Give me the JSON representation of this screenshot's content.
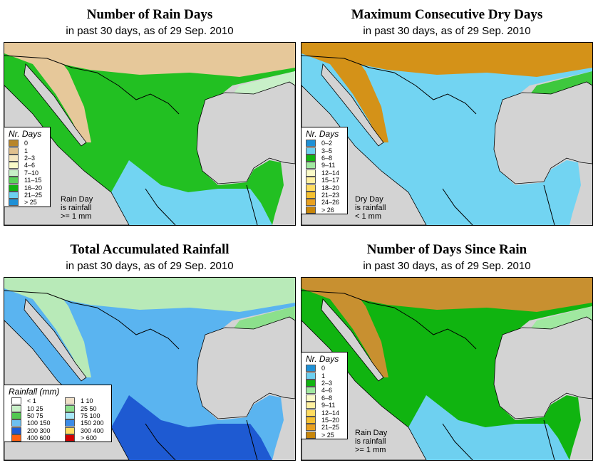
{
  "panels": [
    {
      "id": "rain-days",
      "title": "Number of Rain Days",
      "subtitle": "in past 30 days, as of  29 Sep. 2010",
      "legend_title": "Nr. Days",
      "legend": [
        {
          "label": "0",
          "color": "#b8862b"
        },
        {
          "label": "1",
          "color": "#e0c08e"
        },
        {
          "label": "2–3",
          "color": "#f5e6c0"
        },
        {
          "label": "4–6",
          "color": "#fafac8"
        },
        {
          "label": "7–10",
          "color": "#c8f0c8"
        },
        {
          "label": "11–15",
          "color": "#5ad25a"
        },
        {
          "label": "16–20",
          "color": "#10b410"
        },
        {
          "label": "21–25",
          "color": "#6ed0f0"
        },
        {
          "label": "> 25",
          "color": "#1e90d6"
        }
      ],
      "note": [
        "Rain Day",
        "is rainfall",
        ">= 1 mm"
      ],
      "palette": {
        "north": "#e6c89a",
        "land": "#22c022",
        "south": "#72d4f2",
        "east": "#c8f0c8"
      }
    },
    {
      "id": "max-dry-days",
      "title": "Maximum Consecutive Dry Days",
      "subtitle": "in past 30 days, as of  29 Sep. 2010",
      "legend_title": "Nr. Days",
      "legend": [
        {
          "label": "0–2",
          "color": "#1e90d6"
        },
        {
          "label": "3–5",
          "color": "#6ed0f0"
        },
        {
          "label": "6–8",
          "color": "#10b410"
        },
        {
          "label": "9–11",
          "color": "#a0e8a0"
        },
        {
          "label": "12–14",
          "color": "#fafac8"
        },
        {
          "label": "15–17",
          "color": "#fff0a0"
        },
        {
          "label": "18–20",
          "color": "#ffdc60"
        },
        {
          "label": "21–23",
          "color": "#f5c030"
        },
        {
          "label": "24–26",
          "color": "#e8a020"
        },
        {
          "label": "> 26",
          "color": "#c8860a"
        }
      ],
      "note": [
        "Dry Day",
        "is rainfall",
        "< 1 mm"
      ],
      "palette": {
        "north": "#d49218",
        "land": "#72d4f2",
        "south": "#72d4f2",
        "east": "#3ec83e"
      }
    },
    {
      "id": "total-rainfall",
      "title": "Total Accumulated Rainfall",
      "subtitle": "in past 30 days, as of  29 Sep. 2010",
      "legend_title": "Rainfall (mm)",
      "legend": [
        {
          "label": "< 1",
          "color": "#ffffff"
        },
        {
          "label": "1    10",
          "color": "#f0e0c8"
        },
        {
          "label": "10    25",
          "color": "#c8f0c8"
        },
        {
          "label": "25    50",
          "color": "#8ce08c"
        },
        {
          "label": "50    75",
          "color": "#50c850"
        },
        {
          "label": "75    100",
          "color": "#a8e8f8"
        },
        {
          "label": "100   150",
          "color": "#6ec0f0"
        },
        {
          "label": "150   200",
          "color": "#3c8ce8"
        },
        {
          "label": "200   300",
          "color": "#1e5ad2"
        },
        {
          "label": "300   400",
          "color": "#ffdc60"
        },
        {
          "label": "400   600",
          "color": "#ff6010"
        },
        {
          "label": "> 600",
          "color": "#d20000"
        }
      ],
      "note": [],
      "palette": {
        "north": "#b8eab8",
        "land": "#5ab4f0",
        "south": "#1e5ad2",
        "east": "#8ce08c"
      }
    },
    {
      "id": "days-since-rain",
      "title": "Number of Days Since Rain",
      "subtitle": "in past 30 days, as of  29 Sep. 2010",
      "legend_title": "Nr. Days",
      "legend": [
        {
          "label": "0",
          "color": "#1e90d6"
        },
        {
          "label": "1",
          "color": "#6ed0f0"
        },
        {
          "label": "2–3",
          "color": "#10b410"
        },
        {
          "label": "4–6",
          "color": "#a0e8a0"
        },
        {
          "label": "6–8",
          "color": "#fafac8"
        },
        {
          "label": "9–11",
          "color": "#fff0a0"
        },
        {
          "label": "12–14",
          "color": "#ffdc60"
        },
        {
          "label": "15–20",
          "color": "#f5c030"
        },
        {
          "label": "21–25",
          "color": "#e8a020"
        },
        {
          "label": "> 25",
          "color": "#c8860a"
        }
      ],
      "note": [
        "Rain Day",
        "is rainfall",
        ">= 1 mm"
      ],
      "palette": {
        "north": "#c89030",
        "land": "#10b410",
        "south": "#6ed0f0",
        "east": "#a0e8a0"
      }
    }
  ]
}
